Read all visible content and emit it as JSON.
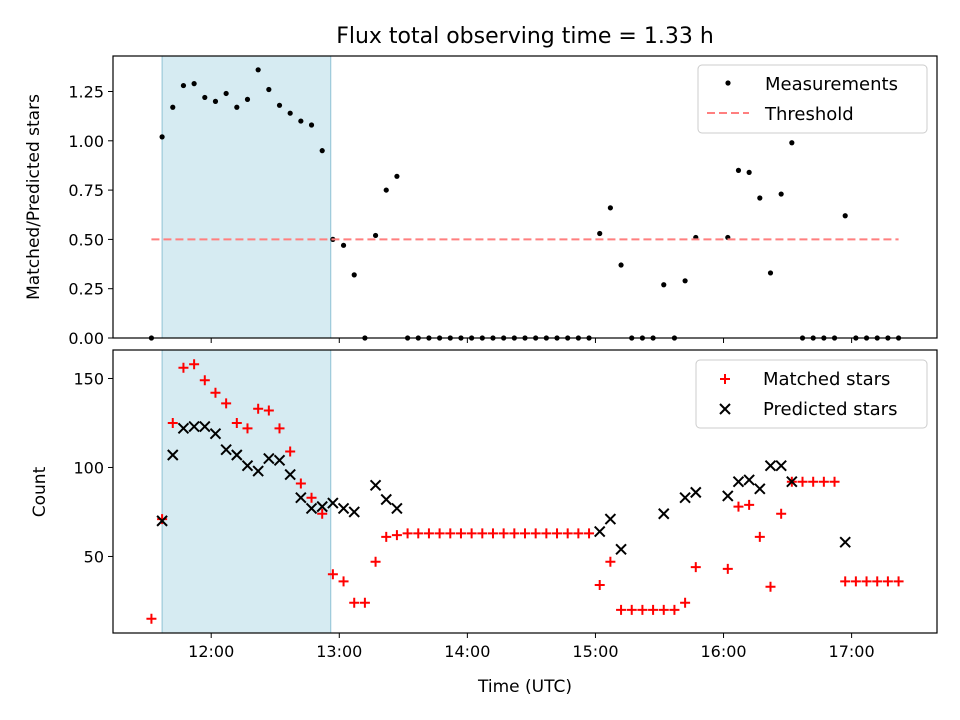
{
  "chart_data": [
    {
      "type": "scatter",
      "title": "Flux total observing time = 1.33 h",
      "xlabel": "",
      "ylabel": "Matched/Predicted stars",
      "xlim": [
        "11:14",
        "17:40"
      ],
      "ylim": [
        0,
        1.43
      ],
      "yticks": [
        0.0,
        0.25,
        0.5,
        0.75,
        1.0,
        1.25
      ],
      "ytick_labels": [
        "0.00",
        "0.25",
        "0.50",
        "0.75",
        "1.00",
        "1.25"
      ],
      "highlight_span": [
        "11:37",
        "12:56"
      ],
      "legend_position": "top-right",
      "series": [
        {
          "name": "Measurements",
          "marker": "dot",
          "color": "#000000",
          "points": [
            [
              "11:32",
              0.0
            ],
            [
              "11:37",
              1.02
            ],
            [
              "11:42",
              1.17
            ],
            [
              "11:47",
              1.28
            ],
            [
              "11:52",
              1.29
            ],
            [
              "11:57",
              1.22
            ],
            [
              "12:02",
              1.2
            ],
            [
              "12:07",
              1.24
            ],
            [
              "12:12",
              1.17
            ],
            [
              "12:17",
              1.21
            ],
            [
              "12:22",
              1.36
            ],
            [
              "12:27",
              1.26
            ],
            [
              "12:32",
              1.18
            ],
            [
              "12:37",
              1.14
            ],
            [
              "12:42",
              1.1
            ],
            [
              "12:47",
              1.08
            ],
            [
              "12:52",
              0.95
            ],
            [
              "12:57",
              0.5
            ],
            [
              "13:02",
              0.47
            ],
            [
              "13:07",
              0.32
            ],
            [
              "13:12",
              0.0
            ],
            [
              "13:17",
              0.52
            ],
            [
              "13:22",
              0.75
            ],
            [
              "13:27",
              0.82
            ],
            [
              "13:32",
              0.0
            ],
            [
              "13:37",
              0.0
            ],
            [
              "13:42",
              0.0
            ],
            [
              "13:47",
              0.0
            ],
            [
              "13:52",
              0.0
            ],
            [
              "13:57",
              0.0
            ],
            [
              "14:02",
              0.0
            ],
            [
              "14:07",
              0.0
            ],
            [
              "14:12",
              0.0
            ],
            [
              "14:17",
              0.0
            ],
            [
              "14:22",
              0.0
            ],
            [
              "14:27",
              0.0
            ],
            [
              "14:32",
              0.0
            ],
            [
              "14:37",
              0.0
            ],
            [
              "14:42",
              0.0
            ],
            [
              "14:47",
              0.0
            ],
            [
              "14:52",
              0.0
            ],
            [
              "14:57",
              0.0
            ],
            [
              "15:02",
              0.53
            ],
            [
              "15:07",
              0.66
            ],
            [
              "15:12",
              0.37
            ],
            [
              "15:17",
              0.0
            ],
            [
              "15:22",
              0.0
            ],
            [
              "15:27",
              0.0
            ],
            [
              "15:32",
              0.27
            ],
            [
              "15:37",
              0.0
            ],
            [
              "15:42",
              0.29
            ],
            [
              "15:47",
              0.51
            ],
            [
              "16:02",
              0.51
            ],
            [
              "16:07",
              0.85
            ],
            [
              "16:12",
              0.84
            ],
            [
              "16:17",
              0.71
            ],
            [
              "16:22",
              0.33
            ],
            [
              "16:27",
              0.73
            ],
            [
              "16:32",
              0.99
            ],
            [
              "16:37",
              0.0
            ],
            [
              "16:42",
              0.0
            ],
            [
              "16:47",
              0.0
            ],
            [
              "16:52",
              0.0
            ],
            [
              "16:57",
              0.62
            ],
            [
              "17:02",
              0.0
            ],
            [
              "17:07",
              0.0
            ],
            [
              "17:12",
              0.0
            ],
            [
              "17:17",
              0.0
            ],
            [
              "17:22",
              0.0
            ]
          ]
        },
        {
          "name": "Threshold",
          "marker": "dashed-line",
          "color": "#ff7f7f",
          "points": [
            [
              "11:32",
              0.5
            ],
            [
              "17:22",
              0.5
            ]
          ]
        }
      ]
    },
    {
      "type": "scatter",
      "title": "",
      "xlabel": "Time (UTC)",
      "ylabel": "Count",
      "xlim": [
        "11:14",
        "17:40"
      ],
      "ylim": [
        7,
        166
      ],
      "yticks": [
        50,
        100,
        150
      ],
      "ytick_labels": [
        "50",
        "100",
        "150"
      ],
      "xticks": [
        "12:00",
        "13:00",
        "14:00",
        "15:00",
        "16:00",
        "17:00"
      ],
      "highlight_span": [
        "11:37",
        "12:56"
      ],
      "legend_position": "top-right",
      "series": [
        {
          "name": "Matched stars",
          "marker": "plus",
          "color": "#ff0000",
          "points": [
            [
              "11:32",
              15
            ],
            [
              "11:37",
              71
            ],
            [
              "11:42",
              125
            ],
            [
              "11:47",
              156
            ],
            [
              "11:52",
              158
            ],
            [
              "11:57",
              149
            ],
            [
              "12:02",
              142
            ],
            [
              "12:07",
              136
            ],
            [
              "12:12",
              125
            ],
            [
              "12:17",
              122
            ],
            [
              "12:22",
              133
            ],
            [
              "12:27",
              132
            ],
            [
              "12:32",
              122
            ],
            [
              "12:37",
              109
            ],
            [
              "12:42",
              91
            ],
            [
              "12:47",
              83
            ],
            [
              "12:52",
              74
            ],
            [
              "12:57",
              40
            ],
            [
              "13:02",
              36
            ],
            [
              "13:07",
              24
            ],
            [
              "13:12",
              24
            ],
            [
              "13:17",
              47
            ],
            [
              "13:22",
              61
            ],
            [
              "13:27",
              62
            ],
            [
              "13:32",
              63
            ],
            [
              "13:37",
              63
            ],
            [
              "13:42",
              63
            ],
            [
              "13:47",
              63
            ],
            [
              "13:52",
              63
            ],
            [
              "13:57",
              63
            ],
            [
              "14:02",
              63
            ],
            [
              "14:07",
              63
            ],
            [
              "14:12",
              63
            ],
            [
              "14:17",
              63
            ],
            [
              "14:22",
              63
            ],
            [
              "14:27",
              63
            ],
            [
              "14:32",
              63
            ],
            [
              "14:37",
              63
            ],
            [
              "14:42",
              63
            ],
            [
              "14:47",
              63
            ],
            [
              "14:52",
              63
            ],
            [
              "14:57",
              63
            ],
            [
              "15:02",
              34
            ],
            [
              "15:07",
              47
            ],
            [
              "15:12",
              20
            ],
            [
              "15:17",
              20
            ],
            [
              "15:22",
              20
            ],
            [
              "15:27",
              20
            ],
            [
              "15:32",
              20
            ],
            [
              "15:37",
              20
            ],
            [
              "15:42",
              24
            ],
            [
              "15:47",
              44
            ],
            [
              "16:02",
              43
            ],
            [
              "16:07",
              78
            ],
            [
              "16:12",
              79
            ],
            [
              "16:17",
              61
            ],
            [
              "16:22",
              33
            ],
            [
              "16:27",
              74
            ],
            [
              "16:32",
              92
            ],
            [
              "16:37",
              92
            ],
            [
              "16:42",
              92
            ],
            [
              "16:47",
              92
            ],
            [
              "16:52",
              92
            ],
            [
              "16:57",
              36
            ],
            [
              "17:02",
              36
            ],
            [
              "17:07",
              36
            ],
            [
              "17:12",
              36
            ],
            [
              "17:17",
              36
            ],
            [
              "17:22",
              36
            ]
          ]
        },
        {
          "name": "Predicted stars",
          "marker": "x",
          "color": "#000000",
          "points": [
            [
              "11:37",
              70
            ],
            [
              "11:42",
              107
            ],
            [
              "11:47",
              122
            ],
            [
              "11:52",
              123
            ],
            [
              "11:57",
              123
            ],
            [
              "12:02",
              119
            ],
            [
              "12:07",
              110
            ],
            [
              "12:12",
              107
            ],
            [
              "12:17",
              101
            ],
            [
              "12:22",
              98
            ],
            [
              "12:27",
              105
            ],
            [
              "12:32",
              104
            ],
            [
              "12:37",
              96
            ],
            [
              "12:42",
              83
            ],
            [
              "12:47",
              77
            ],
            [
              "12:52",
              78
            ],
            [
              "12:57",
              80
            ],
            [
              "13:02",
              77
            ],
            [
              "13:07",
              75
            ],
            [
              "13:17",
              90
            ],
            [
              "13:22",
              82
            ],
            [
              "13:27",
              77
            ],
            [
              "15:02",
              64
            ],
            [
              "15:07",
              71
            ],
            [
              "15:12",
              54
            ],
            [
              "15:32",
              74
            ],
            [
              "15:42",
              83
            ],
            [
              "15:47",
              86
            ],
            [
              "16:02",
              84
            ],
            [
              "16:07",
              92
            ],
            [
              "16:12",
              93
            ],
            [
              "16:17",
              88
            ],
            [
              "16:22",
              101
            ],
            [
              "16:27",
              101
            ],
            [
              "16:32",
              92
            ],
            [
              "16:57",
              58
            ]
          ]
        }
      ]
    }
  ]
}
